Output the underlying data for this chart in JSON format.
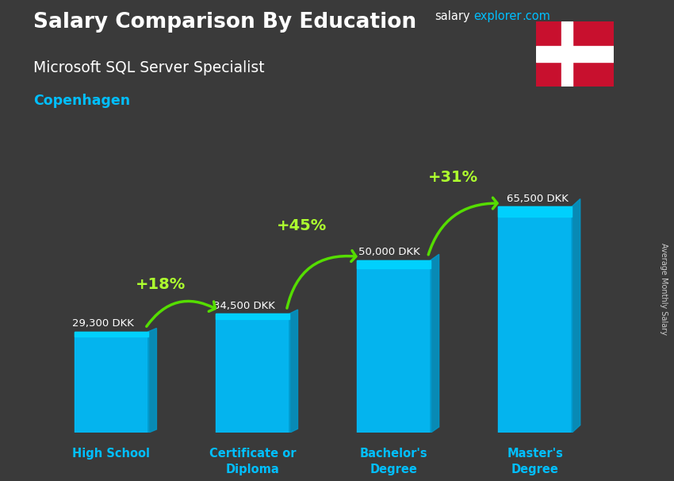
{
  "title_line1": "Salary Comparison By Education",
  "subtitle": "Microsoft SQL Server Specialist",
  "city": "Copenhagen",
  "ylabel": "Average Monthly Salary",
  "categories": [
    "High School",
    "Certificate or\nDiploma",
    "Bachelor's\nDegree",
    "Master's\nDegree"
  ],
  "values": [
    29300,
    34500,
    50000,
    65500
  ],
  "value_labels": [
    "29,300 DKK",
    "34,500 DKK",
    "50,000 DKK",
    "65,500 DKK"
  ],
  "pct_changes": [
    "+18%",
    "+45%",
    "+31%"
  ],
  "bar_color_main": "#00BFFF",
  "bar_color_light": "#00D4FF",
  "bar_color_dark": "#0099CC",
  "title_color": "#FFFFFF",
  "subtitle_color": "#FFFFFF",
  "city_color": "#00BFFF",
  "value_label_color": "#FFFFFF",
  "pct_color": "#ADFF2F",
  "watermark_salary_color": "#FFFFFF",
  "watermark_explorer_color": "#00BFFF",
  "arrow_color": "#55DD00",
  "bg_color": "#3a3a3a",
  "ylim": [
    0,
    78000
  ],
  "flag_red": "#C8102E",
  "flag_white": "#FFFFFF",
  "xtick_color": "#00BFFF",
  "ylabel_color": "#CCCCCC"
}
